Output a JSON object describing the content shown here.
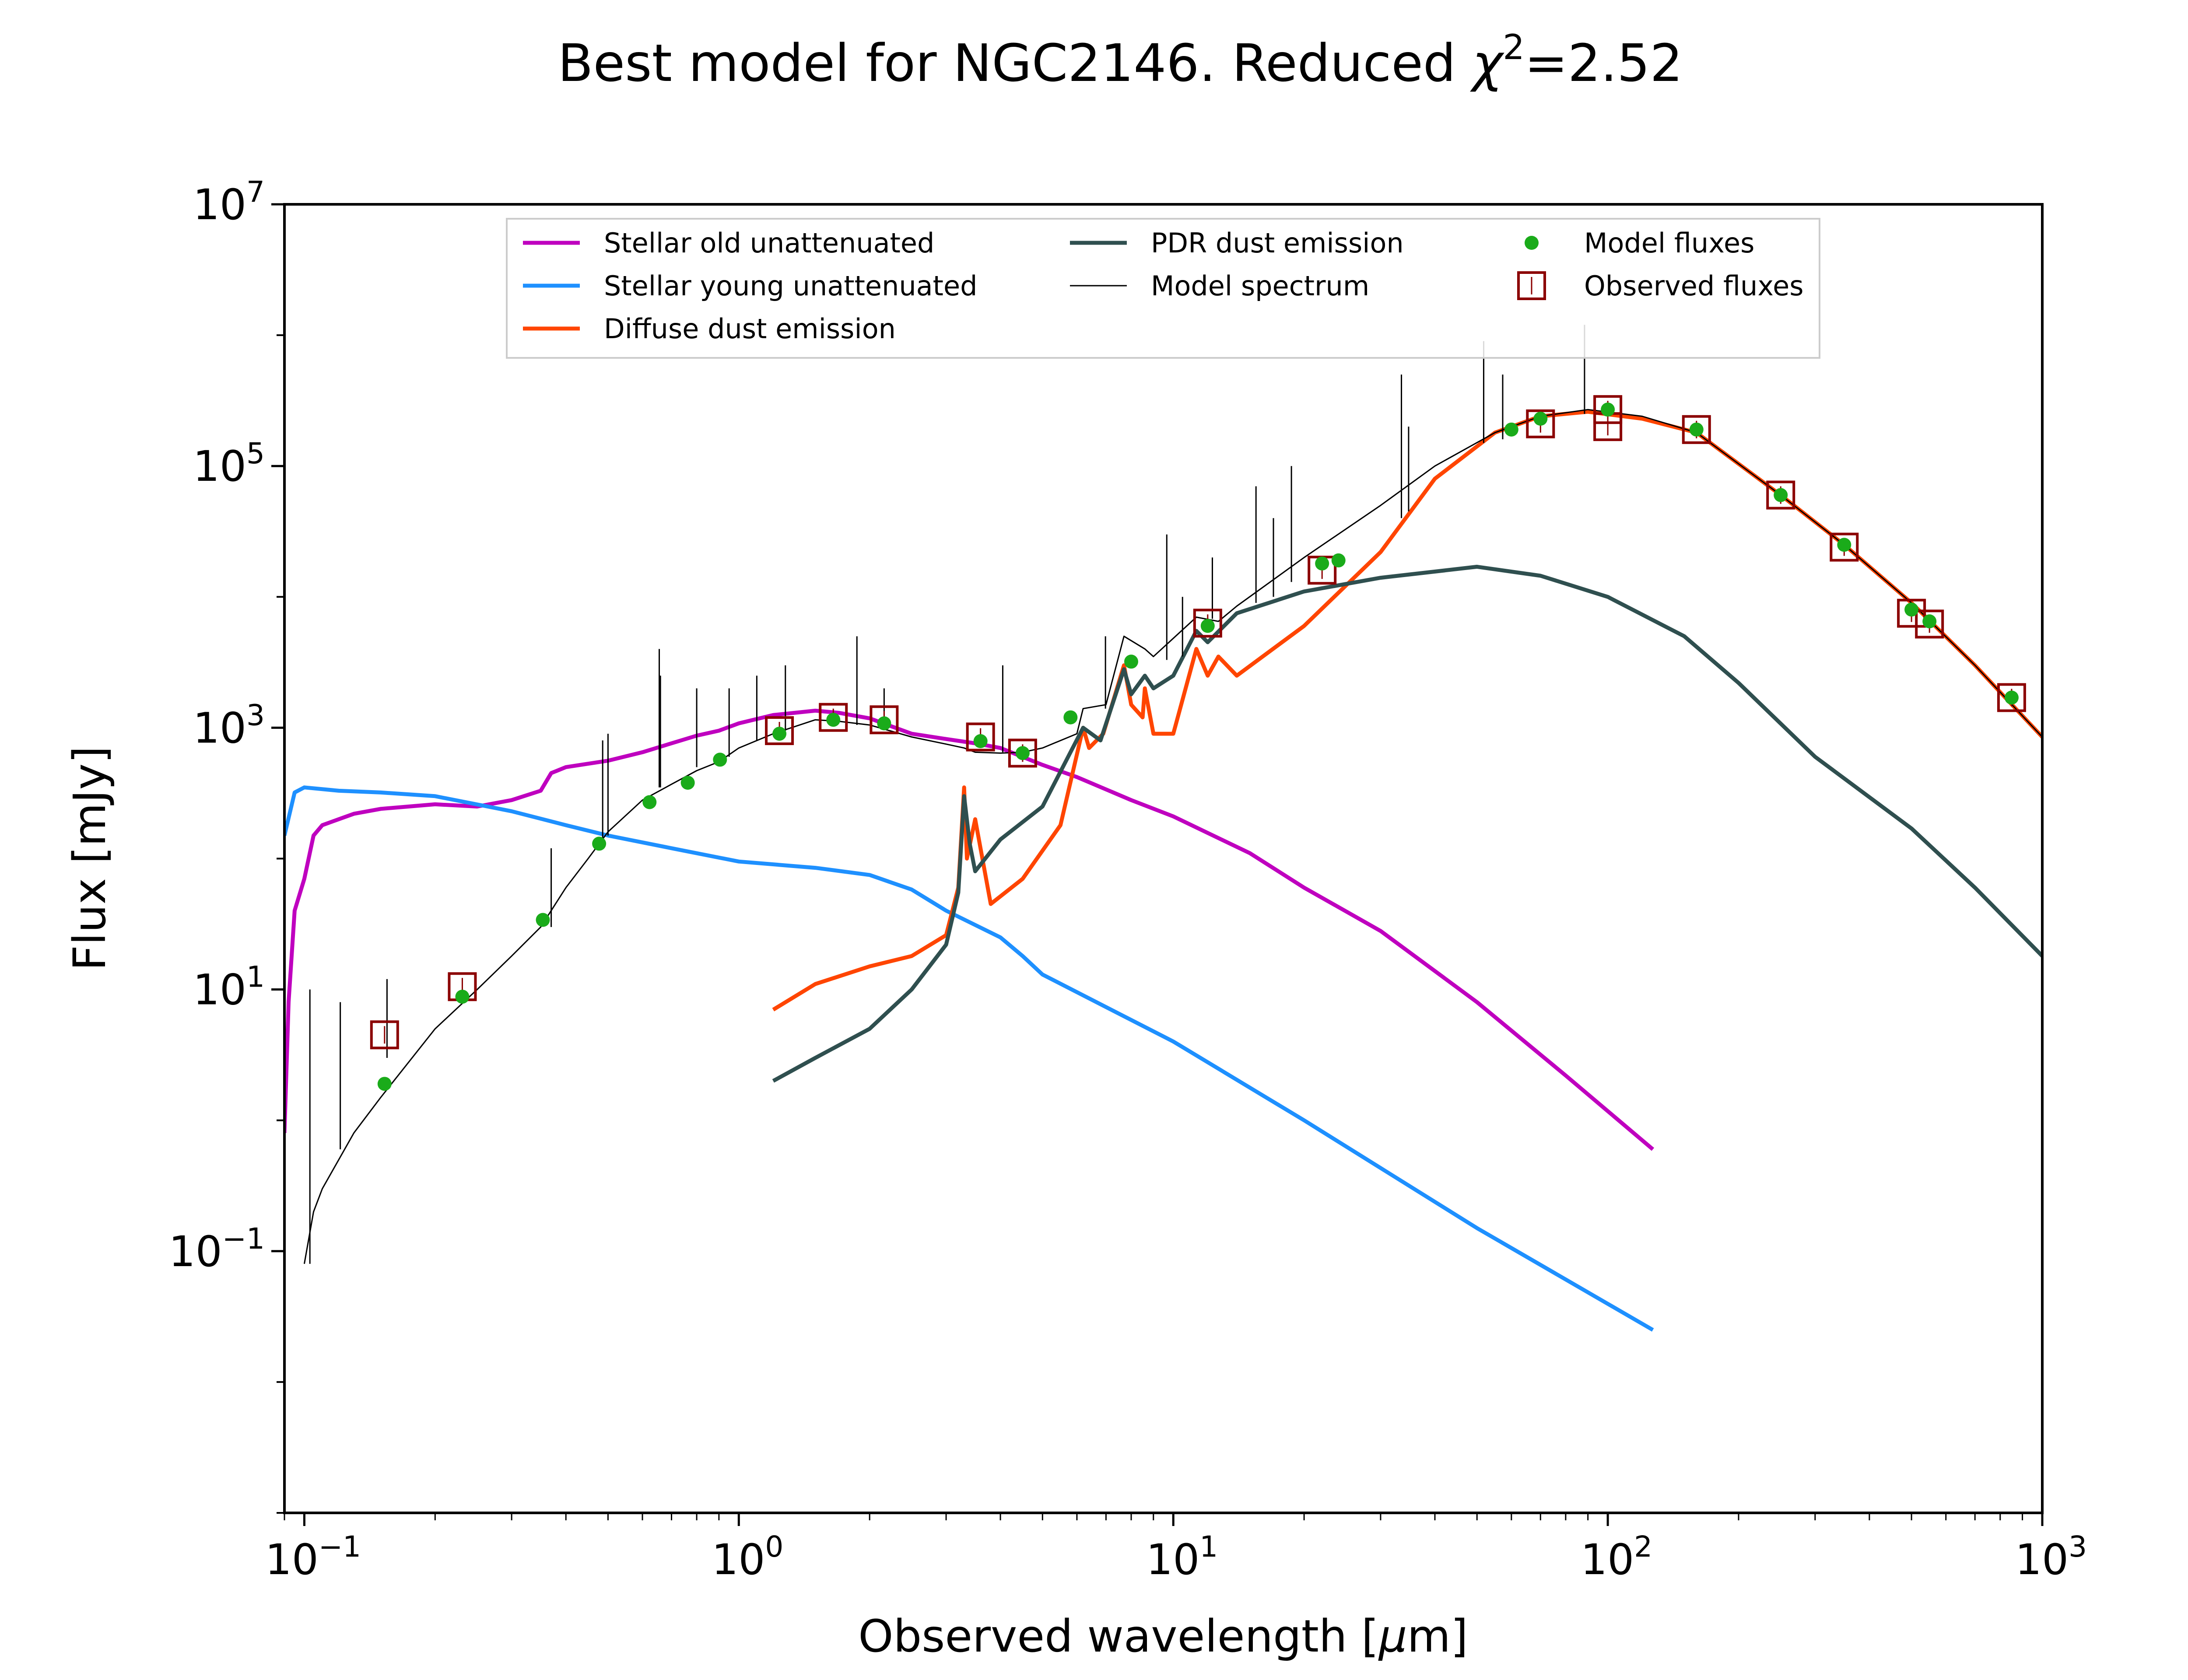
{
  "chart_data": {
    "type": "line",
    "title": "Best model for NGC2146. Reduced χ²=2.52",
    "title_parts": {
      "main": "Best model for NGC2146. Reduced ",
      "symbol": "χ",
      "sup": "2",
      "tail": "=2.52"
    },
    "xlabel": "Observed wavelength [μm]",
    "xlabel_parts": {
      "main": "Observed wavelength [",
      "mu": "μ",
      "tail": "m]"
    },
    "ylabel": "Flux [mJy]",
    "xscale": "log",
    "yscale": "log",
    "xlim": [
      0.09,
      1000
    ],
    "ylim": [
      0.001,
      10000000
    ],
    "x_ticks": [
      {
        "value": 0.1,
        "base": "10",
        "exp": "−1"
      },
      {
        "value": 1,
        "base": "10",
        "exp": "0"
      },
      {
        "value": 10,
        "base": "10",
        "exp": "1"
      },
      {
        "value": 100,
        "base": "10",
        "exp": "2"
      },
      {
        "value": 1000,
        "base": "10",
        "exp": "3"
      }
    ],
    "y_ticks": [
      {
        "value": 0.1,
        "base": "10",
        "exp": "−1"
      },
      {
        "value": 10,
        "base": "10",
        "exp": "1"
      },
      {
        "value": 1000,
        "base": "10",
        "exp": "3"
      },
      {
        "value": 100000,
        "base": "10",
        "exp": "5"
      },
      {
        "value": 10000000,
        "base": "10",
        "exp": "7"
      }
    ],
    "grid": false,
    "legend_position": "upper-center",
    "legend": [
      {
        "label": "Stellar old unattenuated",
        "kind": "line",
        "color": "#bf00bf"
      },
      {
        "label": "Stellar young unattenuated",
        "kind": "line",
        "color": "#1e90ff"
      },
      {
        "label": "Diffuse dust emission",
        "kind": "line",
        "color": "#ff4500"
      },
      {
        "label": "PDR dust emission",
        "kind": "line",
        "color": "#2f4f4f"
      },
      {
        "label": "Model spectrum",
        "kind": "thinline",
        "color": "#000000"
      },
      {
        "label": "Model fluxes",
        "kind": "dot",
        "color": "#1aab1a"
      },
      {
        "label": "Observed fluxes",
        "kind": "square",
        "color": "#8b0000"
      }
    ],
    "series": [
      {
        "name": "Stellar old unattenuated",
        "color": "#bf00bf",
        "points": [
          [
            0.09,
            0.8
          ],
          [
            0.092,
            8
          ],
          [
            0.095,
            40
          ],
          [
            0.1,
            70
          ],
          [
            0.105,
            150
          ],
          [
            0.11,
            180
          ],
          [
            0.12,
            200
          ],
          [
            0.13,
            220
          ],
          [
            0.15,
            240
          ],
          [
            0.2,
            260
          ],
          [
            0.25,
            250
          ],
          [
            0.3,
            280
          ],
          [
            0.35,
            330
          ],
          [
            0.37,
            450
          ],
          [
            0.4,
            500
          ],
          [
            0.5,
            560
          ],
          [
            0.6,
            650
          ],
          [
            0.7,
            760
          ],
          [
            0.8,
            870
          ],
          [
            0.9,
            950
          ],
          [
            1.0,
            1080
          ],
          [
            1.2,
            1250
          ],
          [
            1.5,
            1350
          ],
          [
            1.7,
            1300
          ],
          [
            2.0,
            1180
          ],
          [
            2.5,
            900
          ],
          [
            3.0,
            820
          ],
          [
            3.5,
            760
          ],
          [
            4.0,
            700
          ],
          [
            5.0,
            520
          ],
          [
            6.0,
            420
          ],
          [
            8.0,
            280
          ],
          [
            10.0,
            210
          ],
          [
            15.0,
            110
          ],
          [
            20.0,
            60
          ],
          [
            30.0,
            28
          ],
          [
            50.0,
            8
          ],
          [
            80.0,
            2.2
          ],
          [
            127,
            0.6
          ]
        ]
      },
      {
        "name": "Stellar young unattenuated",
        "color": "#1e90ff",
        "points": [
          [
            0.09,
            150
          ],
          [
            0.095,
            320
          ],
          [
            0.1,
            350
          ],
          [
            0.12,
            330
          ],
          [
            0.15,
            320
          ],
          [
            0.2,
            300
          ],
          [
            0.3,
            230
          ],
          [
            0.4,
            180
          ],
          [
            0.5,
            150
          ],
          [
            0.7,
            120
          ],
          [
            1.0,
            95
          ],
          [
            1.5,
            85
          ],
          [
            2.0,
            75
          ],
          [
            2.5,
            58
          ],
          [
            3.0,
            40
          ],
          [
            4.0,
            25
          ],
          [
            4.5,
            18
          ],
          [
            5.0,
            13
          ],
          [
            10.0,
            4
          ],
          [
            20.0,
            1
          ],
          [
            50.0,
            0.15
          ],
          [
            127,
            0.025
          ]
        ]
      },
      {
        "name": "Diffuse dust emission",
        "color": "#ff4500",
        "points": [
          [
            1.2,
            7
          ],
          [
            1.5,
            11
          ],
          [
            2.0,
            15
          ],
          [
            2.5,
            18
          ],
          [
            3.0,
            26
          ],
          [
            3.2,
            60
          ],
          [
            3.3,
            350
          ],
          [
            3.35,
            100
          ],
          [
            3.5,
            200
          ],
          [
            3.8,
            45
          ],
          [
            4.5,
            70
          ],
          [
            5.5,
            180
          ],
          [
            6.2,
            1000
          ],
          [
            6.4,
            700
          ],
          [
            6.9,
            900
          ],
          [
            7.7,
            3000
          ],
          [
            8.0,
            1500
          ],
          [
            8.5,
            1200
          ],
          [
            8.6,
            2000
          ],
          [
            9.0,
            900
          ],
          [
            10.0,
            900
          ],
          [
            11.3,
            4000
          ],
          [
            12.0,
            2500
          ],
          [
            12.7,
            3500
          ],
          [
            14.0,
            2500
          ],
          [
            20.0,
            6000
          ],
          [
            30.0,
            22000
          ],
          [
            40.0,
            80000
          ],
          [
            55.0,
            180000
          ],
          [
            70.0,
            240000
          ],
          [
            90.0,
            260000
          ],
          [
            120.0,
            230000
          ],
          [
            160.0,
            180000
          ],
          [
            250.0,
            60000
          ],
          [
            350.0,
            25000
          ],
          [
            500.0,
            9000
          ],
          [
            700.0,
            3000
          ],
          [
            1000.0,
            850
          ]
        ]
      },
      {
        "name": "PDR dust emission",
        "color": "#2f4f4f",
        "points": [
          [
            1.2,
            2
          ],
          [
            1.5,
            3
          ],
          [
            2.0,
            5
          ],
          [
            2.5,
            10
          ],
          [
            3.0,
            22
          ],
          [
            3.2,
            55
          ],
          [
            3.3,
            300
          ],
          [
            3.4,
            130
          ],
          [
            3.5,
            80
          ],
          [
            4.0,
            140
          ],
          [
            5.0,
            250
          ],
          [
            6.2,
            1000
          ],
          [
            6.8,
            800
          ],
          [
            7.7,
            2800
          ],
          [
            8.0,
            1800
          ],
          [
            8.6,
            2500
          ],
          [
            9.0,
            2000
          ],
          [
            10.0,
            2500
          ],
          [
            11.3,
            5500
          ],
          [
            12.0,
            4500
          ],
          [
            14.0,
            7500
          ],
          [
            20.0,
            11000
          ],
          [
            30.0,
            14000
          ],
          [
            50.0,
            17000
          ],
          [
            70.0,
            14500
          ],
          [
            100.0,
            10000
          ],
          [
            150.0,
            5000
          ],
          [
            200.0,
            2200
          ],
          [
            300.0,
            600
          ],
          [
            500.0,
            170
          ],
          [
            700.0,
            60
          ],
          [
            1000.0,
            18
          ]
        ]
      },
      {
        "name": "Model spectrum",
        "color": "#000000",
        "points": [
          [
            0.1,
            0.08
          ],
          [
            0.105,
            0.2
          ],
          [
            0.11,
            0.3
          ],
          [
            0.12,
            0.5
          ],
          [
            0.13,
            0.8
          ],
          [
            0.15,
            1.5
          ],
          [
            0.2,
            5
          ],
          [
            0.25,
            10
          ],
          [
            0.3,
            18
          ],
          [
            0.35,
            30
          ],
          [
            0.4,
            60
          ],
          [
            0.45,
            100
          ],
          [
            0.5,
            160
          ],
          [
            0.6,
            280
          ],
          [
            0.7,
            370
          ],
          [
            0.8,
            470
          ],
          [
            0.9,
            550
          ],
          [
            1.0,
            700
          ],
          [
            1.2,
            900
          ],
          [
            1.5,
            1150
          ],
          [
            1.7,
            1120
          ],
          [
            2.0,
            1050
          ],
          [
            2.5,
            850
          ],
          [
            3.0,
            750
          ],
          [
            3.3,
            700
          ],
          [
            3.5,
            650
          ],
          [
            4.0,
            640
          ],
          [
            4.5,
            650
          ],
          [
            5.0,
            700
          ],
          [
            6.0,
            900
          ],
          [
            6.2,
            1400
          ],
          [
            7.0,
            1500
          ],
          [
            7.7,
            5000
          ],
          [
            8.6,
            4000
          ],
          [
            9.0,
            3500
          ],
          [
            11.3,
            7000
          ],
          [
            12.7,
            6500
          ],
          [
            14.0,
            8500
          ],
          [
            20.0,
            20000
          ],
          [
            30.0,
            50000
          ],
          [
            40.0,
            100000
          ],
          [
            55.0,
            180000
          ],
          [
            70.0,
            240000
          ],
          [
            90.0,
            270000
          ],
          [
            120.0,
            240000
          ],
          [
            160.0,
            180000
          ],
          [
            250.0,
            60000
          ],
          [
            350.0,
            25000
          ],
          [
            500.0,
            9000
          ],
          [
            700.0,
            3000
          ],
          [
            1000.0,
            850
          ]
        ],
        "lines": [
          [
            0.103,
            0.08,
            10
          ],
          [
            0.121,
            0.6,
            8
          ],
          [
            0.155,
            3,
            12
          ],
          [
            0.37,
            30,
            120
          ],
          [
            0.486,
            130,
            800
          ],
          [
            0.5,
            150,
            900
          ],
          [
            0.656,
            350,
            4000
          ],
          [
            0.66,
            350,
            2500
          ],
          [
            0.8,
            500,
            2000
          ],
          [
            0.95,
            600,
            2000
          ],
          [
            1.1,
            800,
            2500
          ],
          [
            1.28,
            950,
            3000
          ],
          [
            1.87,
            1050,
            5000
          ],
          [
            2.16,
            1000,
            2000
          ],
          [
            4.05,
            650,
            3000
          ],
          [
            6.98,
            1400,
            5000
          ],
          [
            9.66,
            3300,
            30000
          ],
          [
            10.5,
            3500,
            10000
          ],
          [
            12.3,
            6800,
            20000
          ],
          [
            15.5,
            9000,
            70000
          ],
          [
            17.0,
            10000,
            40000
          ],
          [
            18.7,
            13000,
            100000
          ],
          [
            33.5,
            40000,
            500000
          ],
          [
            34.8,
            45000,
            200000
          ],
          [
            51.8,
            150000,
            900000
          ],
          [
            57.3,
            160000,
            500000
          ],
          [
            88.4,
            250000,
            1200000
          ]
        ]
      }
    ],
    "model_fluxes": [
      [
        0.153,
        1.9
      ],
      [
        0.231,
        8.8
      ],
      [
        0.354,
        34
      ],
      [
        0.477,
        130
      ],
      [
        0.623,
        270
      ],
      [
        0.763,
        380
      ],
      [
        0.905,
        570
      ],
      [
        1.24,
        900
      ],
      [
        1.65,
        1150
      ],
      [
        2.16,
        1080
      ],
      [
        3.6,
        790
      ],
      [
        4.5,
        640
      ],
      [
        5.8,
        1200
      ],
      [
        8.0,
        3200
      ],
      [
        12.0,
        6000
      ],
      [
        22.0,
        18000
      ],
      [
        24.0,
        19000
      ],
      [
        60.0,
        190000
      ],
      [
        70.0,
        230000
      ],
      [
        100.0,
        270000
      ],
      [
        160.0,
        190000
      ],
      [
        250.0,
        60000
      ],
      [
        350.0,
        25000
      ],
      [
        500.0,
        8000
      ],
      [
        550.0,
        6500
      ],
      [
        850.0,
        1700
      ]
    ],
    "observed_fluxes": [
      [
        0.153,
        4.5
      ],
      [
        0.231,
        10.5
      ],
      [
        1.24,
        950
      ],
      [
        1.65,
        1200
      ],
      [
        2.16,
        1150
      ],
      [
        3.6,
        850
      ],
      [
        4.5,
        640
      ],
      [
        12.0,
        6300
      ],
      [
        22.0,
        16000
      ],
      [
        70.0,
        210000
      ],
      [
        100.0,
        270000
      ],
      [
        100.0,
        200000
      ],
      [
        160.0,
        190000
      ],
      [
        250.0,
        60000
      ],
      [
        350.0,
        24000
      ],
      [
        500.0,
        7500
      ],
      [
        550.0,
        6200
      ],
      [
        850.0,
        1700
      ]
    ]
  }
}
